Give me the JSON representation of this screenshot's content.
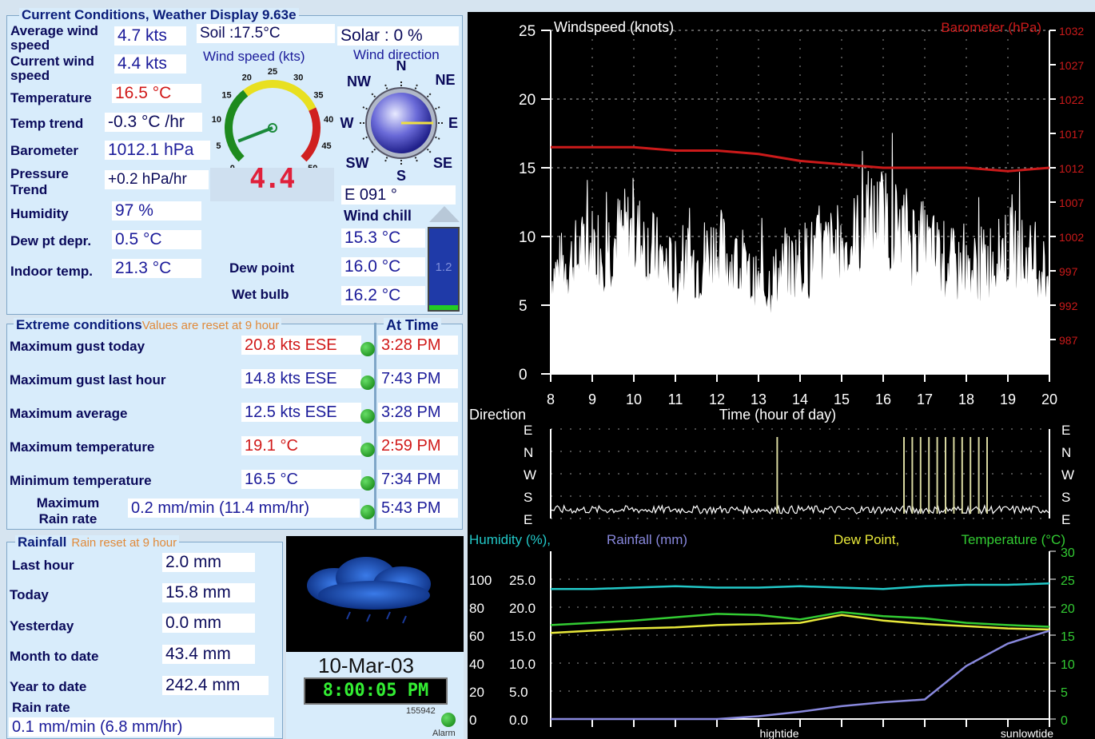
{
  "current": {
    "title": "Current Conditions, Weather Display 9.63e",
    "avg_wind_label": "Average wind speed",
    "avg_wind": "4.7 kts",
    "cur_wind_label": "Current wind speed",
    "cur_wind": "4.4 kts",
    "temp_label": "Temperature",
    "temp": "16.5 °C",
    "trend_label": "Temp trend",
    "trend": "-0.3 °C /hr",
    "baro_label": "Barometer",
    "baro": "1012.1 hPa",
    "ptrend_label": "Pressure Trend",
    "ptrend": "+0.2 hPa/hr",
    "hum_label": "Humidity",
    "hum": "97 %",
    "dew_depr_label": "Dew pt depr.",
    "dew_depr": "0.5 °C",
    "indoor_label": "Indoor temp.",
    "indoor": "21.3 °C",
    "soil": "Soil :17.5°C",
    "solar": "Solar : 0 %",
    "wind_speed_gauge_label": "Wind speed (kts)",
    "wind_speed_gauge_value": 4.4,
    "gauge_ticks": [
      "0",
      "5",
      "10",
      "15",
      "20",
      "25",
      "30",
      "35",
      "40",
      "45",
      "50"
    ],
    "gauge_digital": "4.4",
    "wind_dir_label": "Wind direction",
    "compass": [
      "N",
      "NE",
      "E",
      "SE",
      "S",
      "SW",
      "W",
      "NW"
    ],
    "wind_dir_value": "E  091 °",
    "wind_chill_label": "Wind chill",
    "wind_chill": "15.3 °C",
    "dew_point_label": "Dew point",
    "dew_point": "16.0 °C",
    "wet_bulb_label": "Wet bulb",
    "wet_bulb": "16.2 °C",
    "uv_value": "1.2"
  },
  "extremes": {
    "title": "Extreme conditions",
    "subtitle": "Values are reset at 9 hour",
    "at_time_label": "At Time",
    "rows": [
      {
        "label": "Maximum gust today",
        "value": "20.8 kts ESE",
        "time": "3:28 PM",
        "value_color": "#d01818",
        "time_color": "#d01818"
      },
      {
        "label": "Maximum gust last hour",
        "value": "14.8 kts ESE",
        "time": "7:43 PM",
        "value_color": "#1b1b9a",
        "time_color": "#1b1b9a"
      },
      {
        "label": "Maximum average",
        "value": "12.5 kts ESE",
        "time": "3:28 PM",
        "value_color": "#1b1b9a",
        "time_color": "#1b1b9a"
      },
      {
        "label": "Maximum temperature",
        "value": "19.1 °C",
        "time": "2:59 PM",
        "value_color": "#d01818",
        "time_color": "#d01818"
      },
      {
        "label": "Minimum temperature",
        "value": "16.5 °C",
        "time": "7:34 PM",
        "value_color": "#1b1b9a",
        "time_color": "#1b1b9a"
      },
      {
        "label": "Maximum Rain rate",
        "value": "0.2 mm/min (11.4 mm/hr)",
        "time": "5:43 PM",
        "value_color": "#1b1b9a",
        "time_color": "#1b1b9a"
      }
    ]
  },
  "rainfall": {
    "title": "Rainfall",
    "subtitle": "Rain reset at 9 hour",
    "last_hour_label": "Last hour",
    "last_hour": "2.0 mm",
    "today_label": "Today",
    "today": "15.8 mm",
    "yesterday_label": "Yesterday",
    "yesterday": "0.0 mm",
    "month_label": "Month to date",
    "month": "43.4 mm",
    "year_label": "Year to date",
    "year": "242.4 mm",
    "rate_label": "Rain rate",
    "rate": "0.1 mm/min (6.8 mm/hr)"
  },
  "clock": {
    "date": "10-Mar-03",
    "time": "8:00:05 PM",
    "counter": "155942",
    "alarm_label": "Alarm"
  },
  "charts": {
    "wind_title": "Windspeed (knots)",
    "baro_title": "Barometer (hPa)",
    "xlabel": "Time (hour of day)",
    "direction_title": "Direction",
    "hum_title": "Humidity (%),",
    "rain_title": "Rainfall (mm)",
    "dew_title": "Dew Point,",
    "temp_title": "Temperature (°C)",
    "tide_high": "hightide",
    "tide_low": "sunlowtide",
    "colors": {
      "wind": "#ffffff",
      "baro": "#cc1a1a",
      "humidity": "#22c8c8",
      "rain": "#8888dd",
      "dew": "#e8e83a",
      "temp": "#33cc33",
      "axis": "#ffffff"
    }
  },
  "chart_data": [
    {
      "type": "line",
      "title": "Windspeed (knots)",
      "xlabel": "Time (hour of day)",
      "x": [
        8,
        9,
        10,
        11,
        12,
        13,
        14,
        15,
        16,
        17,
        18,
        19,
        20
      ],
      "xlim": [
        8,
        20
      ],
      "ylim": [
        0,
        25
      ],
      "y_ticks": [
        0,
        5,
        10,
        15,
        20,
        25
      ],
      "y2_ticks": [
        987,
        992,
        997,
        1002,
        1007,
        1012,
        1017,
        1022,
        1027,
        1032
      ],
      "y2lim": [
        982,
        1032
      ],
      "series": [
        {
          "name": "Windspeed (knots)",
          "values": [
            7,
            9,
            10,
            7,
            9,
            6,
            8,
            9,
            11,
            9,
            7,
            9,
            7
          ]
        },
        {
          "name": "Barometer (hPa)",
          "axis": "right",
          "values": [
            1015,
            1015,
            1015,
            1014.5,
            1014.5,
            1014,
            1013,
            1012.5,
            1012,
            1012,
            1012,
            1011.5,
            1012
          ]
        }
      ],
      "grid": true
    },
    {
      "type": "line",
      "title": "Direction",
      "x": [
        8,
        9,
        10,
        11,
        12,
        13,
        14,
        15,
        16,
        17,
        18,
        19,
        20
      ],
      "y_ticks": [
        "E",
        "N",
        "W",
        "S",
        "E"
      ],
      "series": [
        {
          "name": "Direction",
          "values": [
            "E",
            "E",
            "E",
            "E",
            "E",
            "E",
            "E",
            "E",
            "E",
            "E",
            "E",
            "E",
            "E"
          ]
        }
      ]
    },
    {
      "type": "line",
      "x": [
        8,
        9,
        10,
        11,
        12,
        13,
        14,
        15,
        16,
        17,
        18,
        19,
        20
      ],
      "ylim_humidity": [
        0,
        100
      ],
      "ylim_rain": [
        0,
        25
      ],
      "ylim_temp": [
        0,
        30
      ],
      "series": [
        {
          "name": "Humidity (%)",
          "values": [
            93,
            93,
            94,
            95,
            94,
            94,
            95,
            94,
            93,
            95,
            96,
            96,
            97
          ]
        },
        {
          "name": "Rainfall (mm)",
          "values": [
            0,
            0,
            0,
            0,
            0,
            0.5,
            1.3,
            2.3,
            3.0,
            3.5,
            9.5,
            13.5,
            15.8
          ]
        },
        {
          "name": "Dew Point",
          "values": [
            15.4,
            15.8,
            16.2,
            16.4,
            16.8,
            17.0,
            17.2,
            18.6,
            17.6,
            17.0,
            16.6,
            16.2,
            16.0
          ]
        },
        {
          "name": "Temperature (°C)",
          "values": [
            16.8,
            17.2,
            17.6,
            18.2,
            18.8,
            18.6,
            17.8,
            19.1,
            18.4,
            18.0,
            17.2,
            16.8,
            16.5
          ]
        }
      ]
    }
  ]
}
